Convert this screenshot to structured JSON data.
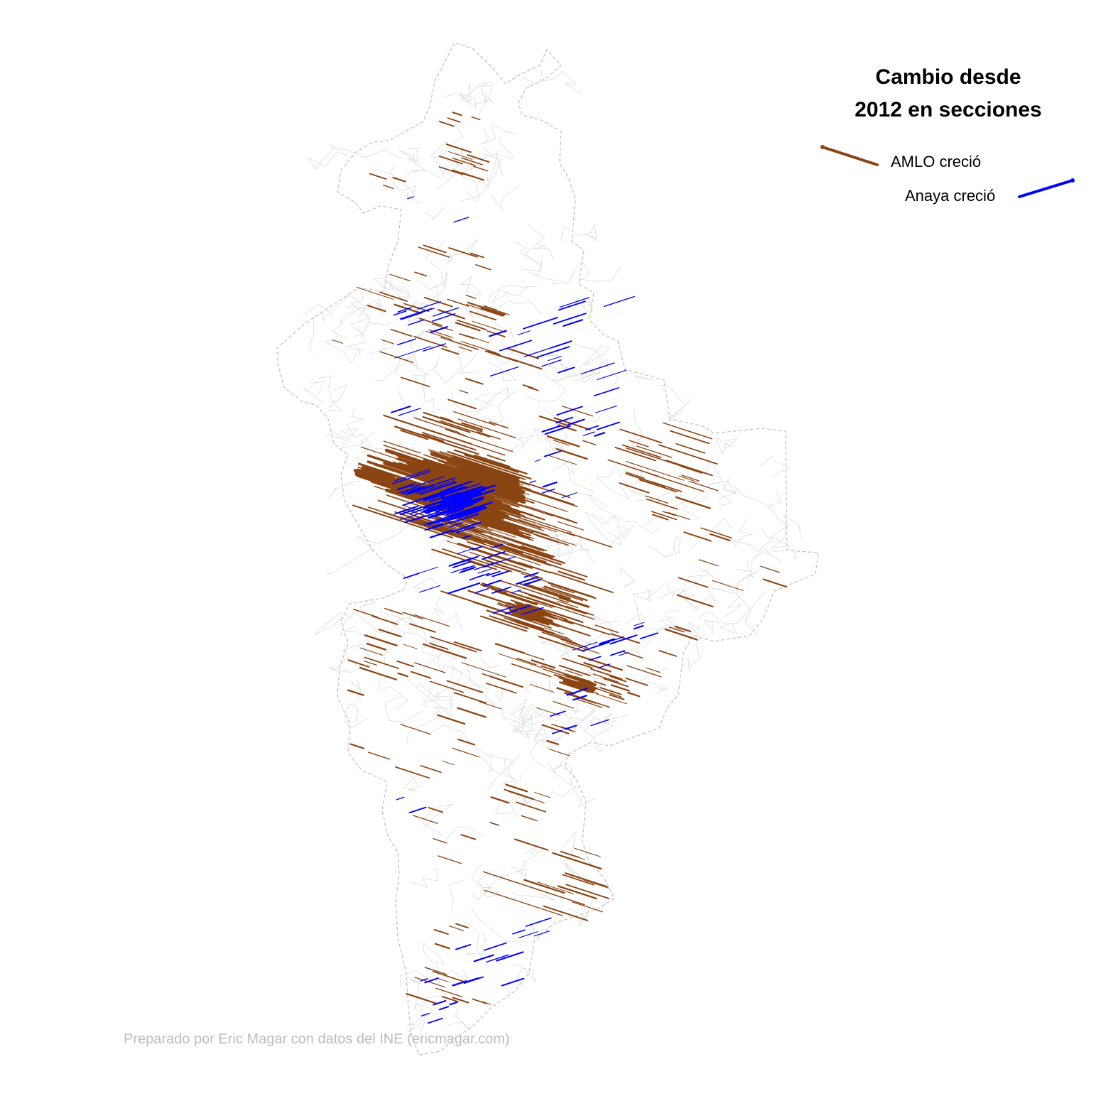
{
  "legend": {
    "title_line1": "Cambio desde",
    "title_line2": "2012 en secciones",
    "amlo_label": "AMLO creció",
    "anaya_label": "Anaya creció",
    "amlo_color": "#8B4513",
    "anaya_color": "#0000FF"
  },
  "credit": "Preparado por Eric Magar con datos del INE (ericmagar.com)",
  "map": {
    "outline_color": "#c8c8c8",
    "section_line_color": "#dcdcdc"
  }
}
